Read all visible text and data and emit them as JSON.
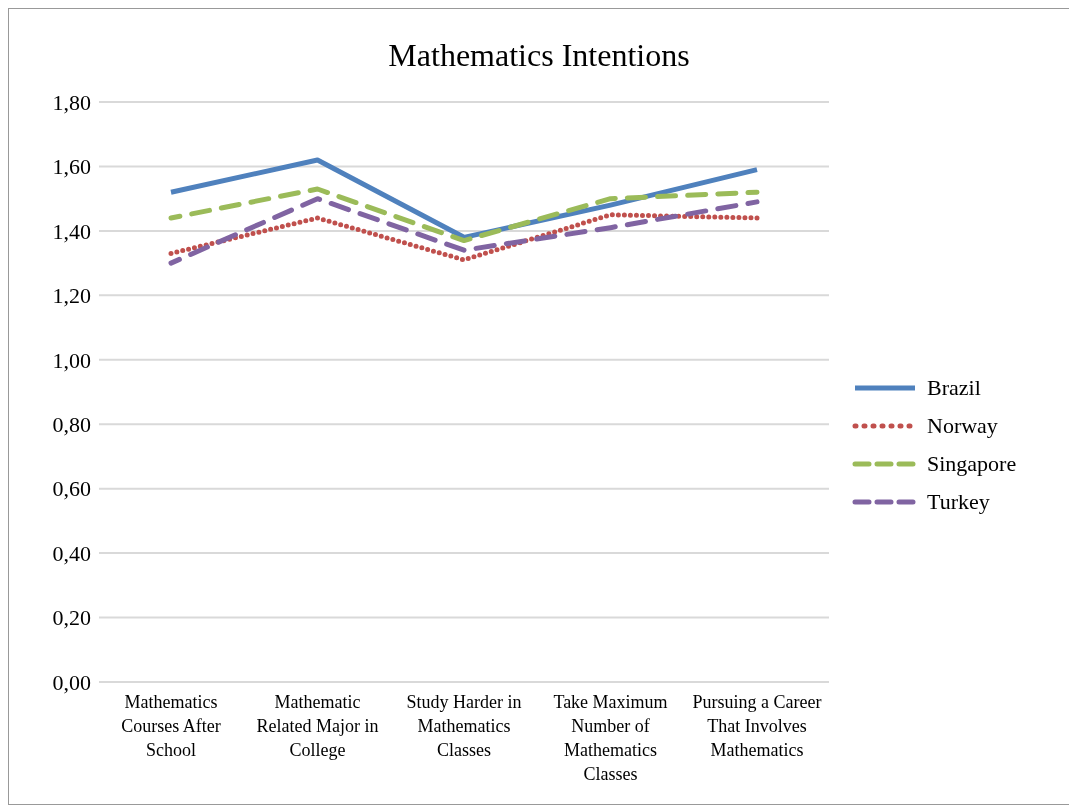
{
  "chart_data": {
    "type": "line",
    "title": "Mathematics Intentions",
    "categories": [
      "Mathematics Courses After School",
      "Mathematic Related Major in College",
      "Study Harder in Mathematics Classes",
      "Take Maximum Number of Mathematics Classes",
      "Pursuing a Career That Involves Mathematics"
    ],
    "series": [
      {
        "name": "Brazil",
        "color": "#4f81bd",
        "line_style": "solid",
        "values": [
          1.52,
          1.62,
          1.38,
          1.48,
          1.59
        ]
      },
      {
        "name": "Norway",
        "color": "#c0504d",
        "line_style": "dotted",
        "values": [
          1.33,
          1.44,
          1.31,
          1.45,
          1.44
        ]
      },
      {
        "name": "Singapore",
        "color": "#9bbb59",
        "line_style": "dashed",
        "values": [
          1.44,
          1.53,
          1.37,
          1.5,
          1.52
        ]
      },
      {
        "name": "Turkey",
        "color": "#8064a2",
        "line_style": "dashed",
        "values": [
          1.3,
          1.5,
          1.34,
          1.41,
          1.49
        ]
      }
    ],
    "ylim": [
      0,
      1.8
    ],
    "yticks": [
      {
        "value": 0,
        "label": "0,00"
      },
      {
        "value": 0.2,
        "label": "0,20"
      },
      {
        "value": 0.4,
        "label": "0,40"
      },
      {
        "value": 0.6,
        "label": "0,60"
      },
      {
        "value": 0.8,
        "label": "0,80"
      },
      {
        "value": 1,
        "label": "1,00"
      },
      {
        "value": 1.2,
        "label": "1,20"
      },
      {
        "value": 1.4,
        "label": "1,40"
      },
      {
        "value": 1.6,
        "label": "1,60"
      },
      {
        "value": 1.8,
        "label": "1,80"
      }
    ],
    "grid": "y",
    "legend": "right",
    "marker": "none"
  }
}
